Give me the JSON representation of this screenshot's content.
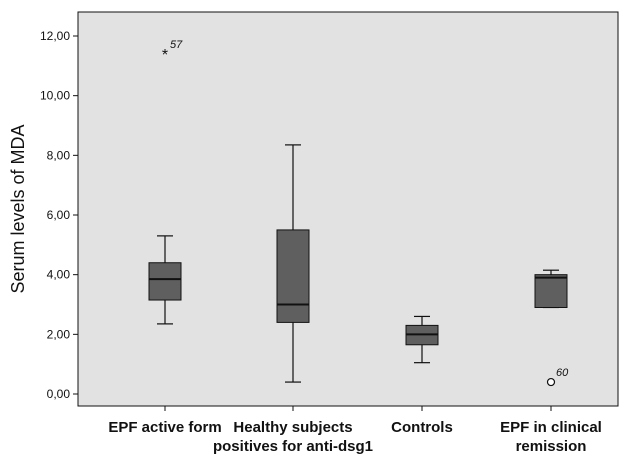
{
  "chart_data": {
    "type": "boxplot",
    "title": "",
    "xlabel": "",
    "ylabel": "Serum levels of MDA",
    "ylim": [
      -0.5,
      12.7
    ],
    "yticks": [
      "0,00",
      "2,00",
      "4,00",
      "6,00",
      "8,00",
      "10,00",
      "12,00"
    ],
    "ytick_values": [
      0,
      2,
      4,
      6,
      8,
      10,
      12
    ],
    "grid": false,
    "categories": [
      [
        "EPF active form"
      ],
      [
        "Healthy subjects",
        "positives for anti-dsg1"
      ],
      [
        "Controls"
      ],
      [
        "EPF in clinical",
        "remission"
      ]
    ],
    "boxes": [
      {
        "whisker_low": 2.35,
        "q1": 3.15,
        "median": 3.85,
        "q3": 4.4,
        "whisker_high": 5.3,
        "outliers": [
          {
            "value": 11.4,
            "marker": "*",
            "label": "57"
          }
        ]
      },
      {
        "whisker_low": 0.4,
        "q1": 2.4,
        "median": 3.0,
        "q3": 5.5,
        "whisker_high": 8.35,
        "outliers": []
      },
      {
        "whisker_low": 1.05,
        "q1": 1.65,
        "median": 2.0,
        "q3": 2.3,
        "whisker_high": 2.6,
        "outliers": []
      },
      {
        "whisker_low": 2.9,
        "q1": 2.9,
        "median": 3.9,
        "q3": 4.0,
        "whisker_high": 4.15,
        "outliers": [
          {
            "value": 0.4,
            "marker": "o",
            "label": "60"
          }
        ]
      }
    ],
    "colors": {
      "box_fill": "#5f5f5f",
      "plot_background": "#e2e2e2",
      "line": "#111111"
    }
  }
}
